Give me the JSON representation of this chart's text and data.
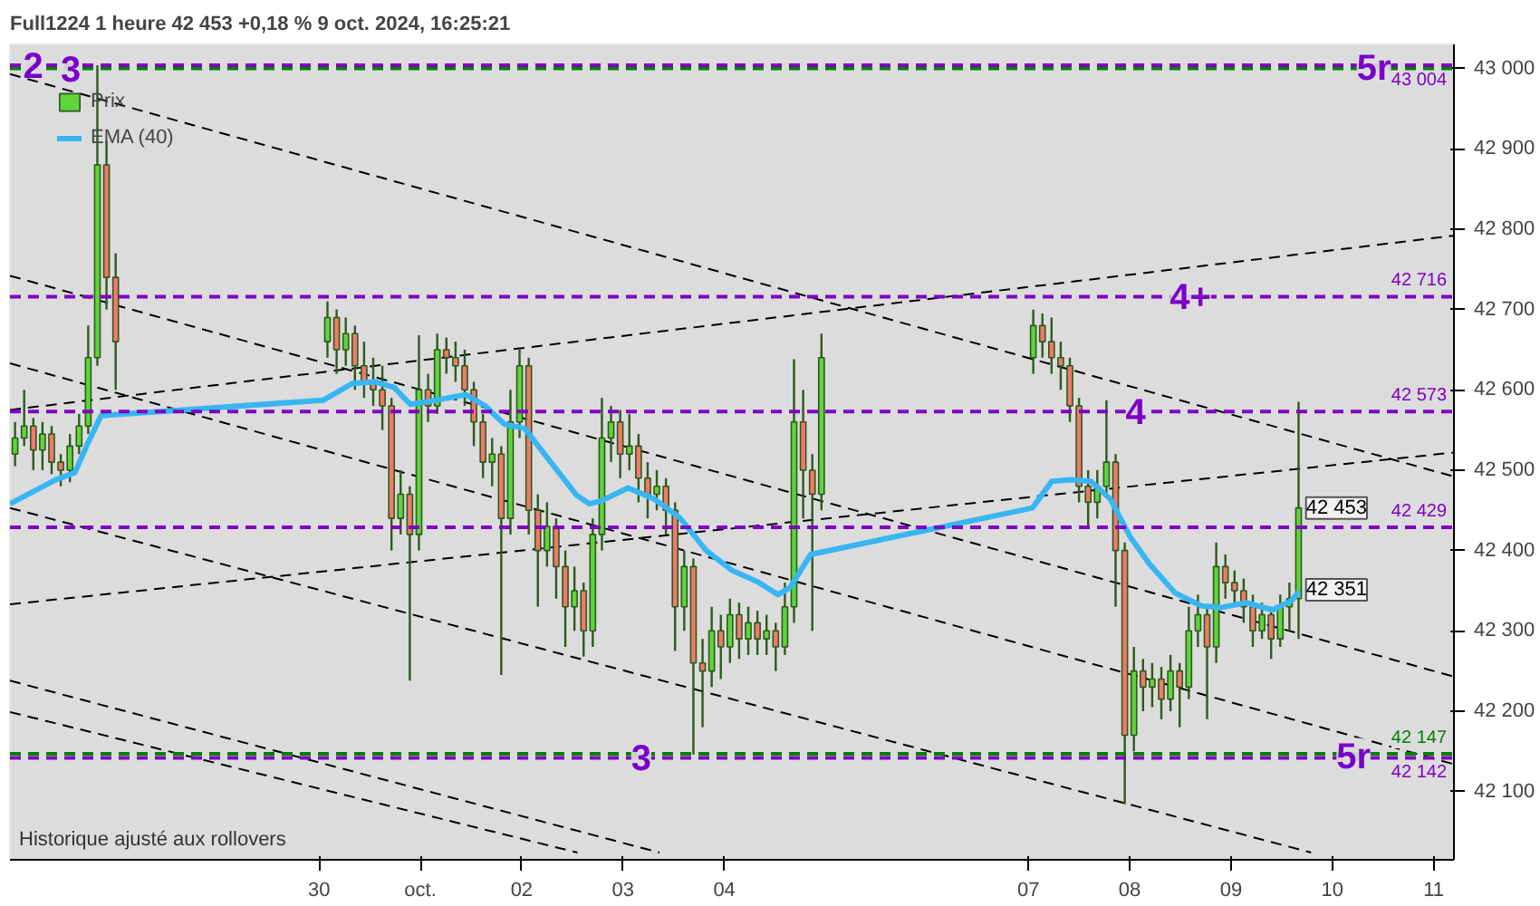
{
  "chart_data": {
    "type": "candlestick",
    "title": "Full1224 1 heure 42 453 +0,18 % 9 oct. 2024, 16:25:21",
    "xlim": [
      "2024-09-26T22:48",
      "2024-10-11T04:48"
    ],
    "xticks": [
      {
        "value": "2024-09-30",
        "label": "30"
      },
      {
        "value": "2024-10-01",
        "label": "oct."
      },
      {
        "value": "2024-10-02",
        "label": "02"
      },
      {
        "value": "2024-10-03",
        "label": "03"
      },
      {
        "value": "2024-10-04",
        "label": "04"
      },
      {
        "value": "2024-10-07",
        "label": "07"
      },
      {
        "value": "2024-10-08",
        "label": "08"
      },
      {
        "value": "2024-10-09",
        "label": "09"
      },
      {
        "value": "2024-10-10",
        "label": "10"
      },
      {
        "value": "2024-10-11",
        "label": "11"
      }
    ],
    "ylim": [
      42015,
      43030
    ],
    "yticks": [
      {
        "value": 42100,
        "label": "42 100"
      },
      {
        "value": 42200,
        "label": "42 200"
      },
      {
        "value": 42300,
        "label": "42 300"
      },
      {
        "value": 42400,
        "label": "42 400"
      },
      {
        "value": 42500,
        "label": "42 500"
      },
      {
        "value": 42600,
        "label": "42 600"
      },
      {
        "value": 42700,
        "label": "42 700"
      },
      {
        "value": 42800,
        "label": "42 800"
      },
      {
        "value": 42900,
        "label": "42 900"
      },
      {
        "value": 43000,
        "label": "43 000"
      }
    ],
    "grid": false,
    "legend": "top left",
    "series": [
      {
        "name": "Prix",
        "x": [
          "2024-09-27T00:00",
          "2024-09-27T02:10",
          "2024-09-27T04:20",
          "2024-09-27T06:30",
          "2024-09-27T08:40",
          "2024-09-27T10:50",
          "2024-09-27T13:00",
          "2024-09-27T15:10",
          "2024-09-27T17:20",
          "2024-09-27T19:30",
          "2024-09-27T21:40",
          "2024-09-27T23:50",
          "2024-09-30T02:00",
          "2024-09-30T04:10",
          "2024-09-30T06:20",
          "2024-09-30T08:30",
          "2024-09-30T10:40",
          "2024-09-30T12:50",
          "2024-09-30T15:00",
          "2024-09-30T17:10",
          "2024-09-30T19:20",
          "2024-09-30T21:30",
          "2024-09-30T23:40",
          "2024-10-01T01:50",
          "2024-10-01T04:00",
          "2024-10-01T06:10",
          "2024-10-01T08:20",
          "2024-10-01T10:30",
          "2024-10-01T12:40",
          "2024-10-01T14:50",
          "2024-10-01T17:00",
          "2024-10-01T19:10",
          "2024-10-01T21:20",
          "2024-10-01T23:30",
          "2024-10-02T01:40",
          "2024-10-02T03:50",
          "2024-10-02T06:00",
          "2024-10-02T08:10",
          "2024-10-02T10:20",
          "2024-10-02T12:30",
          "2024-10-02T14:40",
          "2024-10-02T16:50",
          "2024-10-02T19:00",
          "2024-10-02T21:10",
          "2024-10-02T23:20",
          "2024-10-03T01:30",
          "2024-10-03T03:40",
          "2024-10-03T05:50",
          "2024-10-03T08:00",
          "2024-10-03T10:10",
          "2024-10-03T12:20",
          "2024-10-03T14:30",
          "2024-10-03T16:40",
          "2024-10-03T18:50",
          "2024-10-03T21:00",
          "2024-10-03T23:10",
          "2024-10-04T01:20",
          "2024-10-04T03:30",
          "2024-10-04T05:40",
          "2024-10-04T07:50",
          "2024-10-04T10:00",
          "2024-10-04T12:10",
          "2024-10-04T14:20",
          "2024-10-04T16:30",
          "2024-10-04T18:40",
          "2024-10-04T20:50",
          "2024-10-04T23:00",
          "2024-10-07T01:10",
          "2024-10-07T03:20",
          "2024-10-07T05:30",
          "2024-10-07T07:40",
          "2024-10-07T09:50",
          "2024-10-07T12:00",
          "2024-10-07T14:10",
          "2024-10-07T16:20",
          "2024-10-07T18:30",
          "2024-10-07T20:40",
          "2024-10-07T22:50",
          "2024-10-08T01:00",
          "2024-10-08T03:10",
          "2024-10-08T05:20",
          "2024-10-08T07:30",
          "2024-10-08T09:40",
          "2024-10-08T11:50",
          "2024-10-08T14:00",
          "2024-10-08T16:10",
          "2024-10-08T18:20",
          "2024-10-08T20:30",
          "2024-10-08T22:40",
          "2024-10-09T00:50",
          "2024-10-09T03:00",
          "2024-10-09T05:10",
          "2024-10-09T07:20",
          "2024-10-09T09:30",
          "2024-10-09T11:40",
          "2024-10-09T13:50",
          "2024-10-09T16:00"
        ],
        "ohlc": [
          [
            42520,
            42560,
            42505,
            42540
          ],
          [
            42540,
            42600,
            42530,
            42555
          ],
          [
            42555,
            42565,
            42500,
            42525
          ],
          [
            42525,
            42560,
            42500,
            42545
          ],
          [
            42545,
            42555,
            42495,
            42510
          ],
          [
            42510,
            42520,
            42480,
            42500
          ],
          [
            42500,
            42545,
            42485,
            42530
          ],
          [
            42530,
            42570,
            42520,
            42555
          ],
          [
            42555,
            42680,
            42545,
            42640
          ],
          [
            42640,
            43004,
            42630,
            42880
          ],
          [
            42880,
            42910,
            42700,
            42740
          ],
          [
            42740,
            42770,
            42600,
            42660
          ],
          [
            42660,
            42710,
            42640,
            42690
          ],
          [
            42690,
            42700,
            42620,
            42650
          ],
          [
            42650,
            42690,
            42630,
            42670
          ],
          [
            42670,
            42680,
            42600,
            42630
          ],
          [
            42630,
            42660,
            42590,
            42610
          ],
          [
            42610,
            42640,
            42580,
            42600
          ],
          [
            42600,
            42630,
            42550,
            42580
          ],
          [
            42580,
            42590,
            42400,
            42440
          ],
          [
            42440,
            42500,
            42420,
            42470
          ],
          [
            42470,
            42480,
            42238,
            42420
          ],
          [
            42420,
            42668,
            42400,
            42600
          ],
          [
            42600,
            42620,
            42560,
            42580
          ],
          [
            42580,
            42670,
            42570,
            42650
          ],
          [
            42650,
            42665,
            42620,
            42640
          ],
          [
            42640,
            42660,
            42610,
            42630
          ],
          [
            42630,
            42650,
            42580,
            42600
          ],
          [
            42600,
            42610,
            42530,
            42560
          ],
          [
            42560,
            42570,
            42490,
            42510
          ],
          [
            42510,
            42540,
            42480,
            42520
          ],
          [
            42520,
            42530,
            42245,
            42440
          ],
          [
            42440,
            42600,
            42420,
            42560
          ],
          [
            42560,
            42650,
            42540,
            42630
          ],
          [
            42630,
            42640,
            42420,
            42450
          ],
          [
            42450,
            42470,
            42330,
            42400
          ],
          [
            42400,
            42460,
            42380,
            42430
          ],
          [
            42430,
            42440,
            42340,
            42380
          ],
          [
            42380,
            42400,
            42280,
            42330
          ],
          [
            42330,
            42380,
            42300,
            42350
          ],
          [
            42350,
            42360,
            42268,
            42300
          ],
          [
            42300,
            42440,
            42280,
            42420
          ],
          [
            42420,
            42590,
            42400,
            42540
          ],
          [
            42540,
            42580,
            42510,
            42560
          ],
          [
            42560,
            42575,
            42490,
            42520
          ],
          [
            42520,
            42570,
            42500,
            42530
          ],
          [
            42530,
            42545,
            42460,
            42490
          ],
          [
            42490,
            42510,
            42440,
            42470
          ],
          [
            42470,
            42500,
            42450,
            42480
          ],
          [
            42480,
            42490,
            42420,
            42450
          ],
          [
            42450,
            42460,
            42275,
            42330
          ],
          [
            42330,
            42400,
            42300,
            42380
          ],
          [
            42380,
            42390,
            42146,
            42260
          ],
          [
            42260,
            42290,
            42180,
            42250
          ],
          [
            42250,
            42330,
            42230,
            42300
          ],
          [
            42300,
            42320,
            42240,
            42280
          ],
          [
            42280,
            42340,
            42260,
            42320
          ],
          [
            42320,
            42335,
            42265,
            42290
          ],
          [
            42290,
            42330,
            42270,
            42310
          ],
          [
            42310,
            42325,
            42270,
            42290
          ],
          [
            42290,
            42320,
            42270,
            42300
          ],
          [
            42300,
            42310,
            42250,
            42280
          ],
          [
            42280,
            42360,
            42270,
            42330
          ],
          [
            42330,
            42638,
            42310,
            42560
          ],
          [
            42560,
            42600,
            42440,
            42500
          ],
          [
            42500,
            42520,
            42300,
            42470
          ],
          [
            42470,
            42670,
            42450,
            42640
          ],
          [
            42640,
            42700,
            42620,
            42680
          ],
          [
            42680,
            42695,
            42640,
            42660
          ],
          [
            42660,
            42690,
            42620,
            42640
          ],
          [
            42640,
            42660,
            42600,
            42630
          ],
          [
            42630,
            42640,
            42560,
            42580
          ],
          [
            42580,
            42590,
            42460,
            42480
          ],
          [
            42480,
            42500,
            42430,
            42460
          ],
          [
            42460,
            42500,
            42440,
            42480
          ],
          [
            42480,
            42587,
            42470,
            42510
          ],
          [
            42510,
            42520,
            42330,
            42400
          ],
          [
            42400,
            42410,
            42084,
            42170
          ],
          [
            42170,
            42280,
            42150,
            42250
          ],
          [
            42250,
            42265,
            42200,
            42230
          ],
          [
            42230,
            42260,
            42205,
            42240
          ],
          [
            42240,
            42255,
            42190,
            42215
          ],
          [
            42215,
            42270,
            42200,
            42250
          ],
          [
            42250,
            42260,
            42180,
            42230
          ],
          [
            42230,
            42330,
            42215,
            42300
          ],
          [
            42300,
            42345,
            42280,
            42320
          ],
          [
            42320,
            42330,
            42190,
            42280
          ],
          [
            42280,
            42410,
            42260,
            42380
          ],
          [
            42380,
            42395,
            42340,
            42360
          ],
          [
            42360,
            42375,
            42330,
            42350
          ],
          [
            42350,
            42365,
            42310,
            42330
          ],
          [
            42330,
            42345,
            42280,
            42300
          ],
          [
            42300,
            42335,
            42290,
            42320
          ],
          [
            42320,
            42330,
            42265,
            42290
          ],
          [
            42290,
            42345,
            42280,
            42330
          ],
          [
            42330,
            42360,
            42300,
            42340
          ],
          [
            42340,
            42585,
            42290,
            42453
          ]
        ],
        "colors": [
          "#5fd43c",
          "#5fd43c",
          "#f07a6a",
          "#5fd43c",
          "#f07a6a",
          "#f07a6a",
          "#5fd43c",
          "#5fd43c",
          "#5fd43c",
          "#5fd43c",
          "#f07a6a",
          "#f07a6a",
          "#5fd43c",
          "#f07a6a",
          "#5fd43c",
          "#f07a6a",
          "#f07a6a",
          "#f07a6a",
          "#f07a6a",
          "#f07a6a",
          "#5fd43c",
          "#f07a6a",
          "#5fd43c",
          "#f07a6a",
          "#5fd43c",
          "#f07a6a",
          "#f07a6a",
          "#f07a6a",
          "#f07a6a",
          "#f07a6a",
          "#5fd43c",
          "#f07a6a",
          "#5fd43c",
          "#5fd43c",
          "#f07a6a",
          "#f07a6a",
          "#5fd43c",
          "#f07a6a",
          "#f07a6a",
          "#5fd43c",
          "#f07a6a",
          "#5fd43c",
          "#5fd43c",
          "#5fd43c",
          "#f07a6a",
          "#5fd43c",
          "#f07a6a",
          "#f07a6a",
          "#5fd43c",
          "#f07a6a",
          "#f07a6a",
          "#5fd43c",
          "#f07a6a",
          "#f07a6a",
          "#5fd43c",
          "#f07a6a",
          "#5fd43c",
          "#f07a6a",
          "#5fd43c",
          "#f07a6a",
          "#5fd43c",
          "#f07a6a",
          "#5fd43c",
          "#5fd43c",
          "#f07a6a",
          "#f07a6a",
          "#5fd43c",
          "#5fd43c",
          "#f07a6a",
          "#f07a6a",
          "#f07a6a",
          "#f07a6a",
          "#f07a6a",
          "#f07a6a",
          "#5fd43c",
          "#5fd43c",
          "#f07a6a",
          "#f07a6a",
          "#5fd43c",
          "#f07a6a",
          "#5fd43c",
          "#f07a6a",
          "#5fd43c",
          "#f07a6a",
          "#5fd43c",
          "#5fd43c",
          "#f07a6a",
          "#5fd43c",
          "#f07a6a",
          "#f07a6a",
          "#f07a6a",
          "#f07a6a",
          "#5fd43c",
          "#f07a6a",
          "#5fd43c",
          "#5fd43c",
          "#5fd43c"
        ]
      },
      {
        "name": "EMA (40)",
        "type": "line",
        "color": "#38b6f4",
        "x": [
          "2024-09-26T22:48",
          "2024-09-27T09:36",
          "2024-09-27T14:10",
          "2024-09-27T17:17",
          "2024-09-27T20:24",
          "2024-09-30T00:58",
          "2024-09-30T07:55",
          "2024-09-30T13:12",
          "2024-09-30T17:46",
          "2024-09-30T21:36",
          "2024-10-01T01:26",
          "2024-10-01T07:41",
          "2024-10-01T10:48",
          "2024-10-01T15:22",
          "2024-10-01T19:55",
          "2024-10-02T00:43",
          "2024-10-02T06:43",
          "2024-10-02T12:58",
          "2024-10-02T16:05",
          "2024-10-02T18:58",
          "2024-10-03T01:12",
          "2024-10-03T07:26",
          "2024-10-03T13:26",
          "2024-10-03T19:41",
          "2024-10-04T01:55",
          "2024-10-04T07:55",
          "2024-10-04T12:43",
          "2024-10-04T15:36",
          "2024-10-04T20:24",
          "2024-10-07T00:58",
          "2024-10-07T05:31",
          "2024-10-07T10:05",
          "2024-10-07T14:53",
          "2024-10-07T19:26",
          "2024-10-08T00:00",
          "2024-10-08T04:34",
          "2024-10-08T10:48",
          "2024-10-08T17:02",
          "2024-10-08T21:36",
          "2024-10-09T03:36",
          "2024-10-09T09:50",
          "2024-10-09T14:24",
          "2024-10-09T16:05"
        ],
        "values": [
          42458,
          42488,
          42497,
          42534,
          42568,
          42587,
          42608,
          42610,
          42603,
          42582,
          42585,
          42591,
          42594,
          42580,
          42557,
          42552,
          42511,
          42469,
          42458,
          42462,
          42478,
          42464,
          42441,
          42400,
          42375,
          42361,
          42345,
          42354,
          42395,
          42453,
          42486,
          42488,
          42486,
          42464,
          42418,
          42384,
          42347,
          42331,
          42329,
          42335,
          42326,
          42338,
          42349
        ]
      },
      {
        "type": "line",
        "color": "#000000",
        "line_style": "dashed",
        "x": [
          "2024-09-26T22:48",
          "2024-10-11T04:48"
        ],
        "values": [
          42993,
          42492
        ]
      },
      {
        "type": "line",
        "color": "#000000",
        "line_style": "dashed",
        "x": [
          "2024-09-26T22:48",
          "2024-10-11T04:48"
        ],
        "values": [
          42742,
          42243
        ]
      },
      {
        "type": "line",
        "color": "#000000",
        "line_style": "dashed",
        "x": [
          "2024-09-26T22:48",
          "2024-10-11T04:48"
        ],
        "values": [
          42633,
          42134
        ]
      },
      {
        "type": "line",
        "color": "#000000",
        "line_style": "dashed",
        "x": [
          "2024-09-26T22:48",
          "2024-10-09T18:58"
        ],
        "values": [
          42453,
          42024
        ]
      },
      {
        "type": "line",
        "color": "#000000",
        "line_style": "dashed",
        "x": [
          "2024-09-26T22:48",
          "2024-10-03T08:38"
        ],
        "values": [
          42238,
          42024
        ]
      },
      {
        "type": "line",
        "color": "#000000",
        "line_style": "dashed",
        "x": [
          "2024-09-26T22:48",
          "2024-10-02T13:12"
        ],
        "values": [
          42199,
          42024
        ]
      },
      {
        "type": "line",
        "color": "#000000",
        "line_style": "dashed",
        "x": [
          "2024-09-26T22:48",
          "2024-10-11T04:48"
        ],
        "values": [
          42333,
          42522
        ]
      },
      {
        "type": "line",
        "color": "#000000",
        "line_style": "dashed",
        "x": [
          "2024-09-26T22:48",
          "2024-10-11T04:48"
        ],
        "values": [
          42575,
          42792
        ]
      }
    ],
    "ref_lines": [
      {
        "axis": "y",
        "value": 43000,
        "color": "#008000",
        "line_style": "dashed"
      },
      {
        "axis": "y",
        "value": 43004,
        "label": "43 004",
        "color": "#8000c0",
        "line_style": "dashed"
      },
      {
        "axis": "y",
        "value": 42716,
        "label": "42 716",
        "color": "#8000c0",
        "line_style": "dashed"
      },
      {
        "axis": "y",
        "value": 42573,
        "label": "42 573",
        "color": "#8000c0",
        "line_style": "dashed"
      },
      {
        "axis": "y",
        "value": 42429,
        "label": "42 429",
        "color": "#8000c0",
        "line_style": "dashed"
      },
      {
        "axis": "y",
        "value": 42147,
        "label": "42 147",
        "color": "#008000",
        "line_style": "dashed"
      },
      {
        "axis": "y",
        "value": 42142,
        "label": "42 142",
        "color": "#8000c0",
        "line_style": "dashed"
      }
    ],
    "annotations": [
      {
        "text": "2",
        "x": "2024-09-27T04:19",
        "y": 43004
      },
      {
        "text": "3",
        "x": "2024-09-27T13:12",
        "y": 43000
      },
      {
        "text": "5r",
        "x": "2024-10-10T09:50",
        "y": 43000
      },
      {
        "text": "4+",
        "x": "2024-10-08T14:24",
        "y": 42716
      },
      {
        "text": "4",
        "x": "2024-10-08T01:26",
        "y": 42573
      },
      {
        "text": "3",
        "x": "2024-10-03T04:19",
        "y": 42142
      },
      {
        "text": "5r",
        "x": "2024-10-10T05:02",
        "y": 42142
      },
      {
        "text": "42 453",
        "y": 42453
      },
      {
        "text": "42 351",
        "y": 42351
      },
      "Historique ajusté aux rollovers"
    ]
  }
}
